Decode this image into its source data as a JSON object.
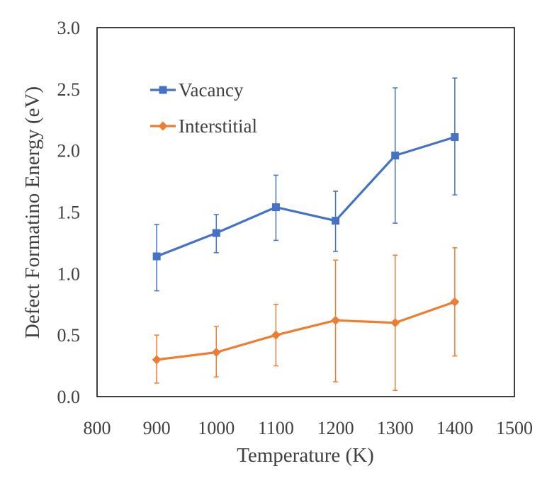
{
  "chart_data": {
    "type": "line",
    "title": "",
    "xlabel": "Temperature (K)",
    "ylabel": "Defect Formatino Energy (eV)",
    "xlim": [
      800,
      1500
    ],
    "ylim": [
      0,
      3.0
    ],
    "xticks": [
      "800",
      "900",
      "1000",
      "1100",
      "1200",
      "1300",
      "1400",
      "1500"
    ],
    "yticks": [
      "0.0",
      "0.5",
      "1.0",
      "1.5",
      "2.0",
      "2.5",
      "3.0"
    ],
    "grid": false,
    "legend_position": "top-left",
    "x": [
      900,
      1000,
      1100,
      1200,
      1300,
      1400
    ],
    "series": [
      {
        "name": "Vacancy",
        "color": "#4472C4",
        "marker": "square",
        "values": [
          1.14,
          1.33,
          1.54,
          1.43,
          1.96,
          2.11
        ],
        "err_low": [
          0.86,
          1.17,
          1.27,
          1.18,
          1.41,
          1.64
        ],
        "err_high": [
          1.4,
          1.48,
          1.8,
          1.67,
          2.51,
          2.59
        ]
      },
      {
        "name": "Interstitial",
        "color": "#ED7D31",
        "marker": "diamond",
        "values": [
          0.3,
          0.36,
          0.5,
          0.62,
          0.6,
          0.77
        ],
        "err_low": [
          0.11,
          0.16,
          0.25,
          0.12,
          0.05,
          0.33
        ],
        "err_high": [
          0.5,
          0.57,
          0.75,
          1.11,
          1.15,
          1.21
        ]
      }
    ]
  }
}
